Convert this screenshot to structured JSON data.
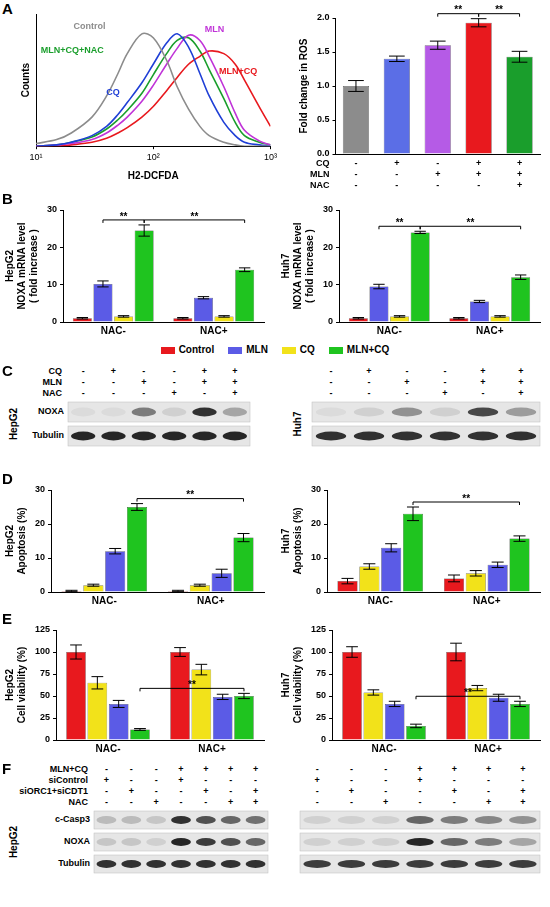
{
  "panel_labels": [
    "A",
    "B",
    "C",
    "D",
    "E",
    "F"
  ],
  "chart_data": [
    {
      "type": "line",
      "xlabel": "H2-DCFDA",
      "ylabel": "Counts",
      "log": "x",
      "tick_labels": "x",
      "grid": false,
      "xlim": [
        10,
        1000
      ],
      "xticks": [
        {
          "value": 10,
          "label": "10¹"
        },
        {
          "value": 100,
          "label": "10²"
        },
        {
          "value": 1000,
          "label": "10³"
        }
      ],
      "ylim": [
        0,
        100
      ],
      "x": [
        10,
        15,
        20,
        30,
        40,
        50,
        60,
        80,
        100,
        130,
        160,
        200,
        250,
        300,
        400,
        500,
        600,
        800,
        1000
      ],
      "series": [
        {
          "name": "Control",
          "color": "#8c8c8c",
          "values": [
            2,
            5,
            10,
            22,
            38,
            55,
            70,
            85,
            82,
            65,
            45,
            28,
            15,
            8,
            3,
            1,
            0,
            0,
            0
          ]
        },
        {
          "name": "CQ",
          "color": "#1f3fd6",
          "values": [
            0,
            1,
            3,
            8,
            15,
            24,
            33,
            48,
            62,
            78,
            85,
            75,
            55,
            38,
            18,
            8,
            3,
            1,
            0
          ]
        },
        {
          "name": "MLN",
          "color": "#c034d8",
          "values": [
            0,
            1,
            2,
            5,
            10,
            16,
            22,
            34,
            46,
            62,
            74,
            84,
            80,
            68,
            45,
            25,
            12,
            4,
            1
          ]
        },
        {
          "name": "MLN+CQ",
          "color": "#e8191e",
          "values": [
            0,
            0,
            1,
            3,
            6,
            10,
            14,
            22,
            30,
            42,
            52,
            62,
            68,
            72,
            70,
            62,
            50,
            30,
            15
          ]
        },
        {
          "name": "MLN+CQ+NAC",
          "color": "#1a9e2c",
          "values": [
            0,
            1,
            3,
            7,
            13,
            20,
            27,
            40,
            54,
            70,
            80,
            82,
            72,
            58,
            36,
            18,
            8,
            3,
            1
          ]
        }
      ]
    },
    {
      "type": "bar",
      "ylabel": "Fold change in ROS",
      "grid": false,
      "categories": [
        null,
        null,
        null,
        null,
        null
      ],
      "values": [
        1.0,
        1.4,
        1.6,
        1.93,
        1.43
      ],
      "errors": [
        0.08,
        0.04,
        0.06,
        0.06,
        0.08
      ],
      "colors": [
        "#8c8c8c",
        "#5b6ee6",
        "#b55be6",
        "#e8191e",
        "#1a9e2c"
      ],
      "ylim": [
        0,
        2.0
      ],
      "yticks": [
        {
          "value": 0,
          "label": "0.0"
        },
        {
          "value": 0.5,
          "label": "0.5"
        },
        {
          "value": 1.0,
          "label": "1.0"
        },
        {
          "value": 1.5,
          "label": "1.5"
        },
        {
          "value": 2.0,
          "label": "2.0"
        }
      ],
      "conditions": [
        {
          "label": "CQ",
          "marks": [
            "-",
            "+",
            "-",
            "+",
            "+"
          ]
        },
        {
          "label": "MLN",
          "marks": [
            "-",
            "-",
            "+",
            "+",
            "+"
          ]
        },
        {
          "label": "NAC",
          "marks": [
            "-",
            "-",
            "-",
            "-",
            "+"
          ]
        }
      ],
      "significance": [
        {
          "from": 2,
          "to": 3,
          "label": "**"
        },
        {
          "from": 3,
          "to": 4,
          "label": "**"
        }
      ]
    },
    {
      "type": "bar",
      "title": "HepG2",
      "ylabel": [
        "NOXA mRNA level",
        "( fold increase )"
      ],
      "grid": false,
      "legend": "bottom",
      "categories": [
        "NAC-",
        "NAC+"
      ],
      "ylim": [
        0,
        30
      ],
      "yticks": [
        0,
        10,
        20,
        30
      ],
      "series": [
        {
          "name": "Control",
          "color": "#e8191e",
          "values": [
            1,
            1
          ],
          "errors": [
            0.2,
            0.2
          ]
        },
        {
          "name": "MLN",
          "color": "#5b5be6",
          "values": [
            10.2,
            6.5
          ],
          "errors": [
            0.8,
            0.3
          ]
        },
        {
          "name": "CQ",
          "color": "#f2e21a",
          "values": [
            1.5,
            1.5
          ],
          "errors": [
            0.2,
            0.2
          ]
        },
        {
          "name": "MLN+CQ",
          "color": "#1fc41f",
          "values": [
            24.5,
            14
          ],
          "errors": [
            1.5,
            0.5
          ]
        }
      ],
      "significance": [
        {
          "from": [
            0,
            1
          ],
          "to": [
            0,
            3
          ],
          "label": "**"
        },
        {
          "from": [
            0,
            3
          ],
          "to": [
            1,
            3
          ],
          "label": "**"
        }
      ]
    },
    {
      "type": "bar",
      "title": "Huh7",
      "ylabel": [
        "NOXA mRNA level",
        "( fold increase )"
      ],
      "grid": false,
      "categories": [
        "NAC-",
        "NAC+"
      ],
      "ylim": [
        0,
        30
      ],
      "yticks": [
        0,
        10,
        20,
        30
      ],
      "series": [
        {
          "color": "#e8191e",
          "values": [
            1,
            1
          ],
          "errors": [
            0.2,
            0.2
          ]
        },
        {
          "color": "#5b5be6",
          "values": [
            9.5,
            5.5
          ],
          "errors": [
            0.6,
            0.3
          ]
        },
        {
          "color": "#f2e21a",
          "values": [
            1.5,
            1.5
          ],
          "errors": [
            0.2,
            0.2
          ]
        },
        {
          "color": "#1fc41f",
          "values": [
            24,
            12
          ],
          "errors": [
            0.3,
            0.6
          ]
        }
      ],
      "significance": [
        {
          "from": [
            0,
            1
          ],
          "to": [
            0,
            3
          ],
          "label": "**"
        },
        {
          "from": [
            0,
            3
          ],
          "to": [
            1,
            3
          ],
          "label": "**"
        }
      ]
    },
    {
      "type": "bar",
      "title": "HepG2",
      "ylabel": "Apoptosis (%)",
      "grid": false,
      "categories": [
        "NAC-",
        "NAC+"
      ],
      "ylim": [
        0,
        30
      ],
      "yticks": [
        0,
        10,
        20,
        30
      ],
      "series": [
        {
          "color": "#e8191e",
          "values": [
            0.3,
            0.3
          ],
          "errors": [
            0.2,
            0.2
          ]
        },
        {
          "color": "#f2e21a",
          "values": [
            2,
            2
          ],
          "errors": [
            0.3,
            0.3
          ]
        },
        {
          "color": "#5b5be6",
          "values": [
            12,
            5.5
          ],
          "errors": [
            0.8,
            1.2
          ]
        },
        {
          "color": "#1fc41f",
          "values": [
            25,
            16
          ],
          "errors": [
            1.0,
            1.2
          ]
        }
      ],
      "significance": [
        {
          "from": [
            0,
            3
          ],
          "to": [
            1,
            3
          ],
          "label": "**"
        }
      ]
    },
    {
      "type": "bar",
      "title": "Huh7",
      "ylabel": "Apoptosis (%)",
      "grid": false,
      "categories": [
        "NAC-",
        "NAC+"
      ],
      "ylim": [
        0,
        30
      ],
      "yticks": [
        0,
        10,
        20,
        30
      ],
      "series": [
        {
          "color": "#e8191e",
          "values": [
            3.2,
            4
          ],
          "errors": [
            0.8,
            1.0
          ]
        },
        {
          "color": "#f2e21a",
          "values": [
            7.5,
            5.5
          ],
          "errors": [
            0.8,
            0.8
          ]
        },
        {
          "color": "#5b5be6",
          "values": [
            13,
            8
          ],
          "errors": [
            1.2,
            0.8
          ]
        },
        {
          "color": "#1fc41f",
          "values": [
            23,
            15.7
          ],
          "errors": [
            2.0,
            0.8
          ]
        }
      ],
      "significance": [
        {
          "from": [
            0,
            3
          ],
          "to": [
            1,
            3
          ],
          "label": "**"
        }
      ]
    },
    {
      "type": "bar",
      "title": "HepG2",
      "ylabel": "Cell viability (%)",
      "grid": false,
      "categories": [
        "NAC-",
        "NAC+"
      ],
      "ylim": [
        0,
        125
      ],
      "yticks": [
        0,
        25,
        50,
        75,
        100,
        125
      ],
      "series": [
        {
          "color": "#e8191e",
          "values": [
            100,
            100
          ],
          "errors": [
            8,
            5
          ]
        },
        {
          "color": "#f2e21a",
          "values": [
            65,
            80
          ],
          "errors": [
            7,
            6
          ]
        },
        {
          "color": "#5b5be6",
          "values": [
            41,
            49
          ],
          "errors": [
            4,
            3
          ]
        },
        {
          "color": "#1fc41f",
          "values": [
            12,
            50
          ],
          "errors": [
            1,
            3
          ]
        }
      ],
      "significance": [
        {
          "from": [
            0,
            3
          ],
          "to": [
            1,
            3
          ],
          "label": "**"
        }
      ]
    },
    {
      "type": "bar",
      "title": "Huh7",
      "ylabel": "Cell viability (%)",
      "grid": false,
      "categories": [
        "NAC-",
        "NAC+"
      ],
      "ylim": [
        0,
        125
      ],
      "yticks": [
        0,
        25,
        50,
        75,
        100,
        125
      ],
      "series": [
        {
          "color": "#e8191e",
          "values": [
            100,
            100
          ],
          "errors": [
            6,
            10
          ]
        },
        {
          "color": "#f2e21a",
          "values": [
            54,
            59
          ],
          "errors": [
            3,
            3
          ]
        },
        {
          "color": "#5b5be6",
          "values": [
            41,
            48
          ],
          "errors": [
            3,
            4
          ]
        },
        {
          "color": "#1fc41f",
          "values": [
            16,
            41
          ],
          "errors": [
            2,
            3
          ]
        }
      ],
      "significance": [
        {
          "from": [
            0,
            3
          ],
          "to": [
            1,
            3
          ],
          "label": "**"
        }
      ]
    }
  ],
  "blots": [
    {
      "conditions": [
        {
          "label": "CQ",
          "marks": [
            "-",
            "+",
            "-",
            "-",
            "+",
            "+"
          ]
        },
        {
          "label": "MLN",
          "marks": [
            "-",
            "-",
            "+",
            "-",
            "+",
            "+"
          ]
        },
        {
          "label": "NAC",
          "marks": [
            "-",
            "-",
            "-",
            "+",
            "-",
            "+"
          ]
        }
      ],
      "cells": [
        {
          "name": "HepG2",
          "rows": [
            {
              "label": "NOXA",
              "intensity": [
                0.05,
                0.05,
                0.5,
                0.1,
                0.85,
                0.3
              ]
            },
            {
              "label": "Tubulin",
              "intensity": [
                0.9,
                0.9,
                0.9,
                0.9,
                0.9,
                0.9
              ]
            }
          ]
        },
        {
          "name": "Huh7",
          "rows": [
            {
              "intensity": [
                0.05,
                0.1,
                0.4,
                0.1,
                0.75,
                0.35
              ]
            },
            {
              "intensity": [
                0.85,
                0.85,
                0.85,
                0.85,
                0.85,
                0.85
              ]
            }
          ]
        }
      ]
    },
    {
      "conditions": [
        {
          "label": "MLN+CQ",
          "marks": [
            "-",
            "-",
            "-",
            "+",
            "+",
            "+",
            "+"
          ]
        },
        {
          "label": "siControl",
          "marks": [
            "+",
            "-",
            "-",
            "+",
            "-",
            "-",
            "-"
          ]
        },
        {
          "label": "siORC1+siCDT1",
          "marks": [
            "-",
            "+",
            "-",
            "-",
            "+",
            "-",
            "+"
          ]
        },
        {
          "label": "NAC",
          "marks": [
            "-",
            "-",
            "+",
            "-",
            "-",
            "+",
            "+"
          ]
        }
      ],
      "cells": [
        {
          "name": "HepG2",
          "rows": [
            {
              "label": "c-Casp3",
              "intensity": [
                0.2,
                0.2,
                0.15,
                0.85,
                0.7,
                0.6,
                0.55
              ]
            },
            {
              "label": "NOXA",
              "intensity": [
                0.15,
                0.15,
                0.1,
                0.9,
                0.8,
                0.7,
                0.6
              ]
            },
            {
              "label": "Tubulin",
              "intensity": [
                0.85,
                0.85,
                0.85,
                0.85,
                0.85,
                0.85,
                0.85
              ]
            }
          ]
        },
        {
          "rows": [
            {
              "intensity": [
                0.1,
                0.1,
                0.1,
                0.6,
                0.5,
                0.45,
                0.4
              ]
            },
            {
              "intensity": [
                0.1,
                0.1,
                0.1,
                0.9,
                0.6,
                0.5,
                0.3
              ]
            },
            {
              "intensity": [
                0.8,
                0.8,
                0.8,
                0.8,
                0.8,
                0.8,
                0.8
              ]
            }
          ]
        }
      ]
    }
  ]
}
